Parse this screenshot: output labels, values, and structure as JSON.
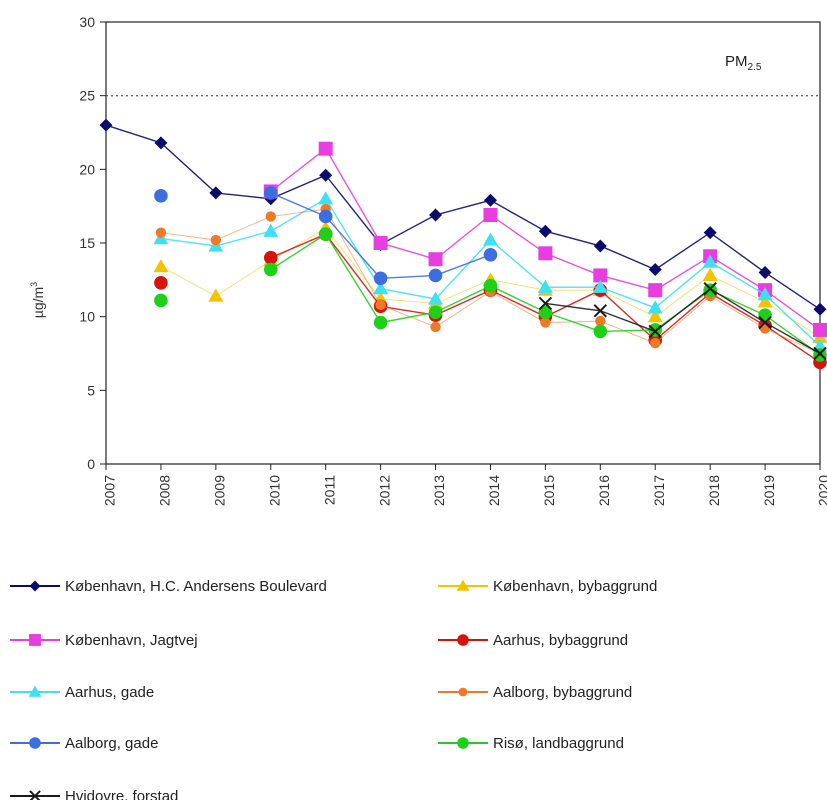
{
  "chart_data": {
    "type": "line",
    "title": "PM2.5",
    "title_main": "PM",
    "title_sub": "2.5",
    "ylabel": "µg/m³",
    "ylabel_main": "µg/m",
    "ylabel_sup": "3",
    "xlabel": "",
    "ylim": [
      0,
      30
    ],
    "yticks": [
      "0",
      "5",
      "10",
      "15",
      "20",
      "25",
      "30"
    ],
    "x": [
      "2007",
      "2008",
      "2009",
      "2010",
      "2011",
      "2012",
      "2013",
      "2014",
      "2015",
      "2016",
      "2017",
      "2018",
      "2019",
      "2020"
    ],
    "reference_line": {
      "value": 25,
      "style": "dotted"
    },
    "grid": false,
    "legend_position": "bottom",
    "series": [
      {
        "name": "København, H.C. Andersens Boulevard",
        "color": "#0b0b6e",
        "marker": "diamond",
        "values": [
          23.0,
          21.8,
          18.4,
          18.0,
          19.6,
          14.9,
          16.9,
          17.9,
          15.8,
          14.8,
          13.2,
          15.7,
          13.0,
          10.5
        ]
      },
      {
        "name": "København, bybaggrund",
        "color": "#f2c400",
        "marker": "triangle",
        "values": [
          null,
          13.4,
          11.4,
          13.8,
          16.0,
          11.2,
          10.9,
          12.5,
          11.8,
          11.8,
          10.0,
          12.8,
          11.0,
          8.6
        ]
      },
      {
        "name": "København, Jagtvej",
        "color": "#e83ee0",
        "marker": "square",
        "values": [
          null,
          null,
          null,
          18.5,
          21.4,
          15.0,
          13.9,
          16.9,
          14.3,
          12.8,
          11.8,
          14.1,
          11.8,
          9.1
        ]
      },
      {
        "name": "Aarhus, bybaggrund",
        "color": "#d7140c",
        "marker": "circle",
        "values": [
          null,
          12.3,
          null,
          14.0,
          15.6,
          10.7,
          10.1,
          11.8,
          10.0,
          11.8,
          8.4,
          11.6,
          9.4,
          6.9
        ]
      },
      {
        "name": "Aarhus, gade",
        "color": "#3fe0f0",
        "marker": "triangle",
        "values": [
          null,
          15.3,
          14.8,
          15.8,
          18.0,
          11.9,
          11.2,
          15.2,
          12.0,
          12.0,
          10.6,
          13.7,
          11.5,
          8.0
        ]
      },
      {
        "name": "Aalborg, bybaggrund",
        "color": "#ee7a28",
        "marker": "circle-small",
        "values": [
          null,
          15.7,
          15.2,
          16.8,
          17.3,
          10.8,
          9.3,
          11.7,
          9.6,
          9.7,
          8.2,
          11.4,
          9.2,
          7.5
        ]
      },
      {
        "name": "Aalborg, gade",
        "color": "#3b6fe0",
        "marker": "circle",
        "values": [
          null,
          18.2,
          null,
          18.4,
          16.8,
          12.6,
          12.8,
          14.2,
          null,
          null,
          null,
          null,
          null,
          null
        ]
      },
      {
        "name": "Risø, landbaggrund",
        "color": "#1fd018",
        "marker": "circle",
        "values": [
          null,
          11.1,
          null,
          13.2,
          15.6,
          9.6,
          10.3,
          12.1,
          10.3,
          9.0,
          9.1,
          11.8,
          10.1,
          7.4
        ]
      },
      {
        "name": "Hvidovre, forstad",
        "color": "#1a1a1a",
        "marker": "x",
        "values": [
          null,
          null,
          null,
          null,
          null,
          null,
          null,
          null,
          10.9,
          10.4,
          9.0,
          11.9,
          9.6,
          7.5
        ]
      }
    ]
  }
}
